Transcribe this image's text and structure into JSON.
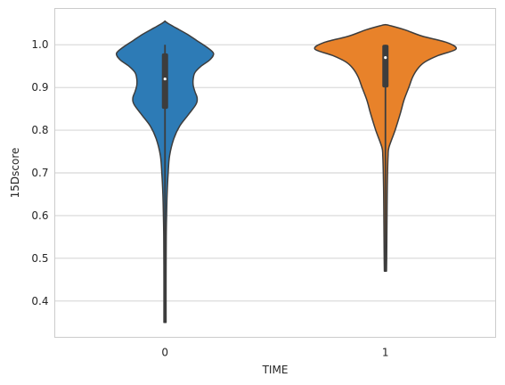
{
  "chart_data": {
    "type": "violin",
    "title": "",
    "xlabel": "TIME",
    "ylabel": "15Dscore",
    "categories": [
      "0",
      "1"
    ],
    "ylim": [
      0.315,
      1.085
    ],
    "yticks": [
      0.4,
      0.5,
      0.6,
      0.7,
      0.8,
      0.9,
      1.0
    ],
    "ytick_labels": [
      "0.4",
      "0.5",
      "0.6",
      "0.7",
      "0.8",
      "0.9",
      "1.0"
    ],
    "grid": true,
    "legend": "none",
    "colors": [
      "#2d7bb6",
      "#e8822a"
    ],
    "violins": [
      {
        "category": "0",
        "min": 0.35,
        "q1": 0.85,
        "median": 0.92,
        "q3": 0.98,
        "max": 1.0,
        "density": [
          [
            0.35,
            0.012
          ],
          [
            0.45,
            0.012
          ],
          [
            0.55,
            0.014
          ],
          [
            0.6,
            0.018
          ],
          [
            0.65,
            0.024
          ],
          [
            0.7,
            0.036
          ],
          [
            0.74,
            0.052
          ],
          [
            0.78,
            0.1
          ],
          [
            0.81,
            0.168
          ],
          [
            0.835,
            0.26
          ],
          [
            0.86,
            0.35
          ],
          [
            0.875,
            0.365
          ],
          [
            0.89,
            0.34
          ],
          [
            0.905,
            0.32
          ],
          [
            0.92,
            0.32
          ],
          [
            0.935,
            0.34
          ],
          [
            0.95,
            0.41
          ],
          [
            0.965,
            0.51
          ],
          [
            0.98,
            0.55
          ],
          [
            0.995,
            0.47
          ],
          [
            1.01,
            0.36
          ],
          [
            1.025,
            0.25
          ],
          [
            1.04,
            0.12
          ],
          [
            1.05,
            0.035
          ],
          [
            1.055,
            0.0
          ]
        ]
      },
      {
        "category": "1",
        "min": 0.47,
        "q1": 0.9,
        "median": 0.97,
        "q3": 1.0,
        "max": 1.0,
        "density": [
          [
            0.47,
            0.012
          ],
          [
            0.5,
            0.014
          ],
          [
            0.55,
            0.016
          ],
          [
            0.6,
            0.018
          ],
          [
            0.65,
            0.02
          ],
          [
            0.7,
            0.024
          ],
          [
            0.74,
            0.03
          ],
          [
            0.76,
            0.04
          ],
          [
            0.8,
            0.11
          ],
          [
            0.84,
            0.17
          ],
          [
            0.87,
            0.21
          ],
          [
            0.9,
            0.265
          ],
          [
            0.925,
            0.31
          ],
          [
            0.945,
            0.37
          ],
          [
            0.96,
            0.45
          ],
          [
            0.975,
            0.6
          ],
          [
            0.99,
            0.8
          ],
          [
            1.005,
            0.7
          ],
          [
            1.02,
            0.42
          ],
          [
            1.035,
            0.22
          ],
          [
            1.045,
            0.05
          ],
          [
            1.047,
            0.0
          ]
        ]
      }
    ]
  }
}
